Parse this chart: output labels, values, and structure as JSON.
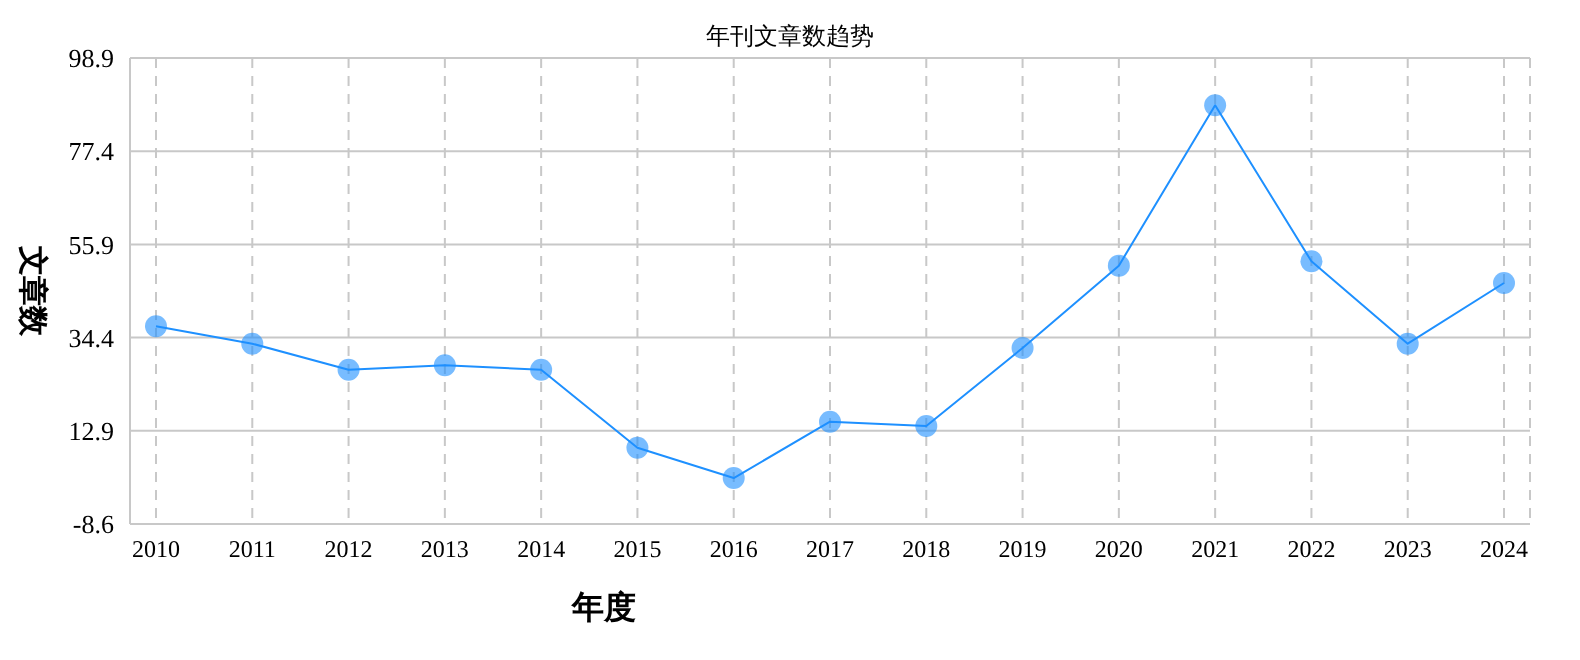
{
  "chart_data": {
    "type": "line",
    "title": "年刊文章数趋势",
    "xlabel": "年度",
    "ylabel": "文章数",
    "categories": [
      "2010",
      "2011",
      "2012",
      "2013",
      "2014",
      "2015",
      "2016",
      "2017",
      "2018",
      "2019",
      "2020",
      "2021",
      "2022",
      "2023",
      "2024"
    ],
    "series": [
      {
        "color": "#1e90ff",
        "values": [
          37,
          33,
          27,
          28,
          27,
          9,
          2,
          15,
          14,
          32,
          51,
          88,
          52,
          33,
          47
        ]
      }
    ],
    "ylim": [
      -8.6,
      98.9
    ],
    "yticks": [
      -8.6,
      12.9,
      34.4,
      55.9,
      77.4,
      98.9
    ],
    "grid": true,
    "marker": "circle",
    "line_style": "solid"
  }
}
